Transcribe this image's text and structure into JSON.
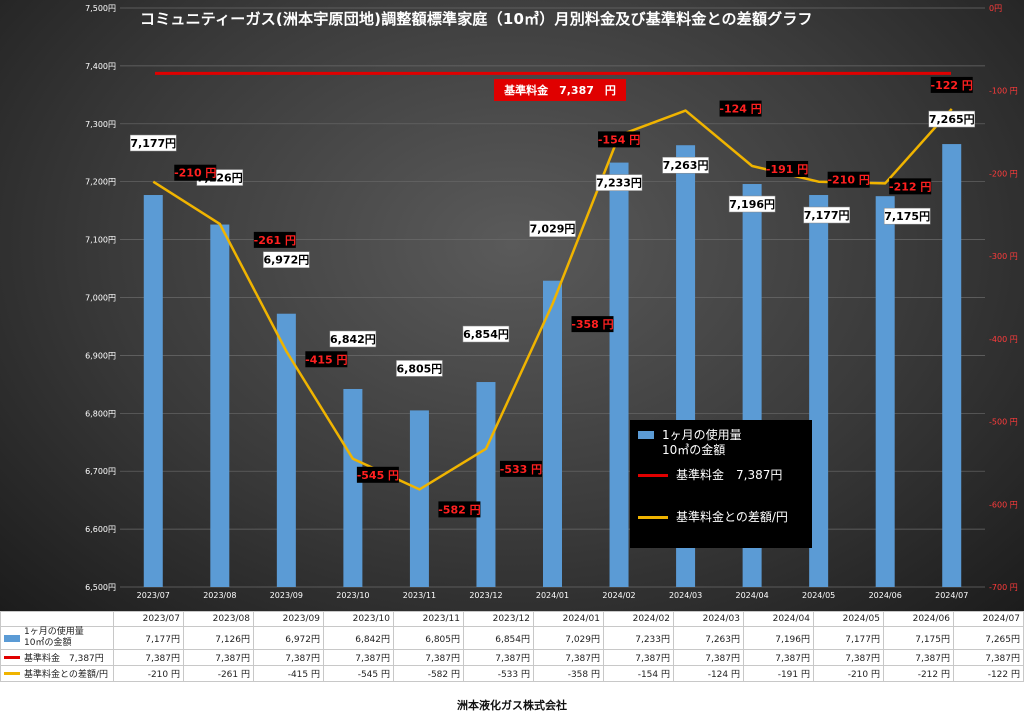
{
  "title": "コミュニティーガス(洲本宇原団地)調整額標準家庭（10㎥）月別料金及び基準料金との差額グラフ",
  "footer": "洲本液化ガス株式会社",
  "colors": {
    "bar": "#5b9bd5",
    "base": "#e00000",
    "diff": "#f0b400"
  },
  "chart_data": {
    "type": "bar",
    "categories": [
      "2023/07",
      "2023/08",
      "2023/09",
      "2023/10",
      "2023/11",
      "2023/12",
      "2024/01",
      "2024/02",
      "2024/03",
      "2024/04",
      "2024/05",
      "2024/06",
      "2024/07"
    ],
    "series": [
      {
        "name": "1ヶ月の使用量\n10㎥の金額",
        "type": "bar",
        "axis": "left",
        "values": [
          7177,
          7126,
          6972,
          6842,
          6805,
          6854,
          7029,
          7233,
          7263,
          7196,
          7177,
          7175,
          7265
        ],
        "labels": [
          "7,177円",
          "7,126円",
          "6,972円",
          "6,842円",
          "6,805円",
          "6,854円",
          "7,029円",
          "7,233円",
          "7,263円",
          "7,196円",
          "7,177円",
          "7,175円",
          "7,265円"
        ]
      },
      {
        "name": "基準料金　7,387円",
        "type": "line",
        "axis": "left",
        "values": [
          7387,
          7387,
          7387,
          7387,
          7387,
          7387,
          7387,
          7387,
          7387,
          7387,
          7387,
          7387,
          7387
        ]
      },
      {
        "name": "基準料金との差額/円",
        "type": "line",
        "axis": "right",
        "values": [
          -210,
          -261,
          -415,
          -545,
          -582,
          -533,
          -358,
          -154,
          -124,
          -191,
          -210,
          -212,
          -122
        ],
        "labels": [
          "-210 円",
          "-261 円",
          "-415 円",
          "-545 円",
          "-582 円",
          "-533 円",
          "-358 円",
          "-154 円",
          "-124 円",
          "-191 円",
          "-210 円",
          "-212 円",
          "-122 円"
        ]
      }
    ],
    "left_axis": {
      "range": [
        6500,
        7500
      ],
      "ticks": [
        "6,500円",
        "6,600円",
        "6,700円",
        "6,800円",
        "6,900円",
        "7,000円",
        "7,100円",
        "7,200円",
        "7,300円",
        "7,400円",
        "7,500円"
      ]
    },
    "right_axis": {
      "range": [
        -700,
        0
      ],
      "ticks": [
        "0円",
        "-100 円",
        "-200 円",
        "-300 円",
        "-400 円",
        "-500 円",
        "-600 円",
        "-700 円"
      ]
    },
    "annotation": "基準料金　7,387　円",
    "grid": true,
    "legend_position": "right-inside"
  },
  "legend": [
    {
      "label": "1ヶ月の使用量\n10㎥の金額"
    },
    {
      "label": "基準料金　7,387円"
    },
    {
      "label": "基準料金との差額/円"
    }
  ],
  "table": {
    "header": [
      "2023/07",
      "2023/08",
      "2023/09",
      "2023/10",
      "2023/11",
      "2023/12",
      "2024/01",
      "2024/02",
      "2024/03",
      "2024/04",
      "2024/05",
      "2024/06",
      "2024/07"
    ],
    "rows": [
      {
        "label": "1ヶ月の使用量\n10㎥の金額",
        "cells": [
          "7,177円",
          "7,126円",
          "6,972円",
          "6,842円",
          "6,805円",
          "6,854円",
          "7,029円",
          "7,233円",
          "7,263円",
          "7,196円",
          "7,177円",
          "7,175円",
          "7,265円"
        ]
      },
      {
        "label": "基準料金　7,387円",
        "cells": [
          "7,387円",
          "7,387円",
          "7,387円",
          "7,387円",
          "7,387円",
          "7,387円",
          "7,387円",
          "7,387円",
          "7,387円",
          "7,387円",
          "7,387円",
          "7,387円",
          "7,387円"
        ]
      },
      {
        "label": "基準料金との差額/円",
        "cells": [
          "-210 円",
          "-261 円",
          "-415 円",
          "-545 円",
          "-582 円",
          "-533 円",
          "-358 円",
          "-154 円",
          "-124 円",
          "-191 円",
          "-210 円",
          "-212 円",
          "-122 円"
        ]
      }
    ]
  }
}
